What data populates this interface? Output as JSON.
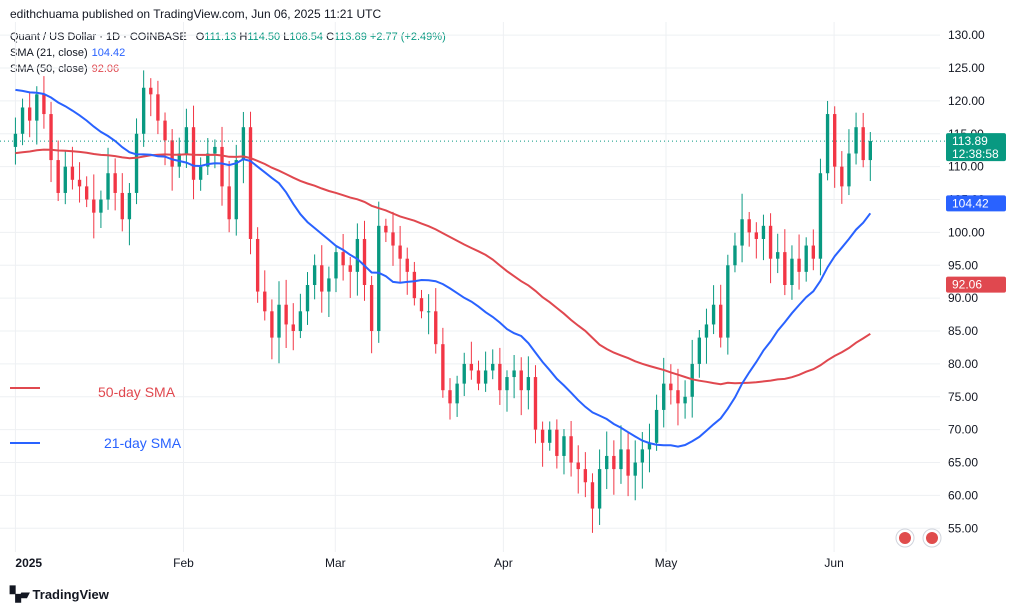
{
  "header": {
    "publisher": "edithchuama published on TradingView.com, Jun 06, 2025 11:21 UTC"
  },
  "legend": {
    "symbol": "Quant / US Dollar · 1D · COINBASE",
    "open_label": "O",
    "open": "111.13",
    "high_label": "H",
    "high": "114.50",
    "low_label": "L",
    "low": "108.54",
    "close_label": "C",
    "close": "113.89",
    "change": "+2.77 (+2.49%)",
    "sma21_label": "SMA (21, close)",
    "sma21_value": "104.42",
    "sma50_label": "SMA (50, close)",
    "sma50_value": "92.06"
  },
  "annotations": {
    "sma50": "50-day SMA",
    "sma21": "21-day SMA"
  },
  "price_tags": {
    "last_price": "113.89",
    "countdown": "12:38:58",
    "sma21": "104.42",
    "sma50": "92.06"
  },
  "brand": {
    "name": "TradingView"
  },
  "colors": {
    "up": "#089981",
    "down": "#f23645",
    "sma21": "#2962ff",
    "sma50": "#e0484f",
    "grid": "#eef0f3",
    "axis_text": "#131722"
  },
  "chart_data": {
    "type": "candlestick",
    "title": "Quant / US Dollar · 1D · COINBASE",
    "ylim": [
      52,
      132
    ],
    "y_ticks": [
      55,
      60,
      65,
      70,
      75,
      80,
      85,
      90,
      95,
      100,
      105,
      110,
      115,
      120,
      125,
      130
    ],
    "y_tick_labels": [
      "55.00",
      "60.00",
      "65.00",
      "70.00",
      "75.00",
      "80.00",
      "85.00",
      "90.00",
      "95.00",
      "100.00",
      "105.00",
      "110.00",
      "115.00",
      "120.00",
      "125.00",
      "130.00"
    ],
    "x_ticks": [
      {
        "label": "2025",
        "day": 0
      },
      {
        "label": "Feb",
        "day": 31
      },
      {
        "label": "Mar",
        "day": 59
      },
      {
        "label": "Apr",
        "day": 90
      },
      {
        "label": "May",
        "day": 120
      },
      {
        "label": "Jun",
        "day": 151
      }
    ],
    "x_range_days": [
      -1,
      165
    ],
    "grid": true,
    "legend_position": "top-left",
    "closes": [
      115,
      119,
      117,
      121,
      118,
      111,
      106,
      110,
      108,
      107,
      105,
      103,
      105,
      109,
      106,
      102,
      106,
      115,
      122,
      121,
      117,
      114,
      110,
      112,
      116,
      108,
      110,
      112,
      113,
      107,
      102,
      111,
      116,
      99,
      91,
      88,
      84,
      89,
      86,
      85,
      88,
      92,
      95,
      91,
      93,
      97,
      95,
      94,
      99,
      92,
      85,
      101,
      100,
      98,
      96,
      94,
      90,
      88,
      88,
      83,
      76,
      74,
      77,
      80,
      79,
      77,
      79,
      80,
      76,
      78,
      79,
      76,
      78,
      70,
      68,
      70,
      66,
      69,
      65,
      64,
      62,
      58,
      64,
      66,
      64,
      67,
      63,
      65,
      67,
      68,
      73,
      77,
      76,
      74,
      75,
      80,
      84,
      86,
      89,
      84,
      95,
      98,
      102,
      100,
      99,
      101,
      96,
      97,
      92,
      96,
      94,
      98,
      96,
      109,
      118,
      110,
      107,
      112,
      116,
      111,
      113.89
    ],
    "sma21": {
      "name": "SMA (21, close)",
      "last": 104.42
    },
    "sma50": {
      "name": "SMA (50, close)",
      "last": 92.06
    },
    "last_close": 113.89
  }
}
